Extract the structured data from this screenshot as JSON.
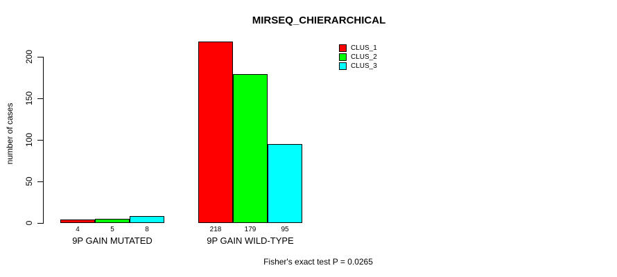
{
  "chart_data": {
    "type": "bar",
    "title": "MIRSEQ_CHIERARCHICAL",
    "xlabel": "",
    "ylabel": "number of cases",
    "yticks": [
      0,
      50,
      100,
      150,
      200
    ],
    "ylim": [
      0,
      220
    ],
    "grid": false,
    "legend_position": "top-right",
    "categories": [
      "9P GAIN MUTATED",
      "9P GAIN WILD-TYPE"
    ],
    "series": [
      {
        "name": "CLUS_1",
        "color": "#ff0000",
        "values": [
          4,
          218
        ]
      },
      {
        "name": "CLUS_2",
        "color": "#00ff00",
        "values": [
          5,
          179
        ]
      },
      {
        "name": "CLUS_3",
        "color": "#00ffff",
        "values": [
          8,
          95
        ]
      }
    ],
    "bar_value_labels": [
      [
        "4",
        "5",
        "8"
      ],
      [
        "218",
        "179",
        "95"
      ]
    ],
    "annotation": "Fisher's exact test P = 0.0265"
  },
  "colors": {
    "background": "#ffffff",
    "axis": "#000000",
    "text": "#000000"
  }
}
